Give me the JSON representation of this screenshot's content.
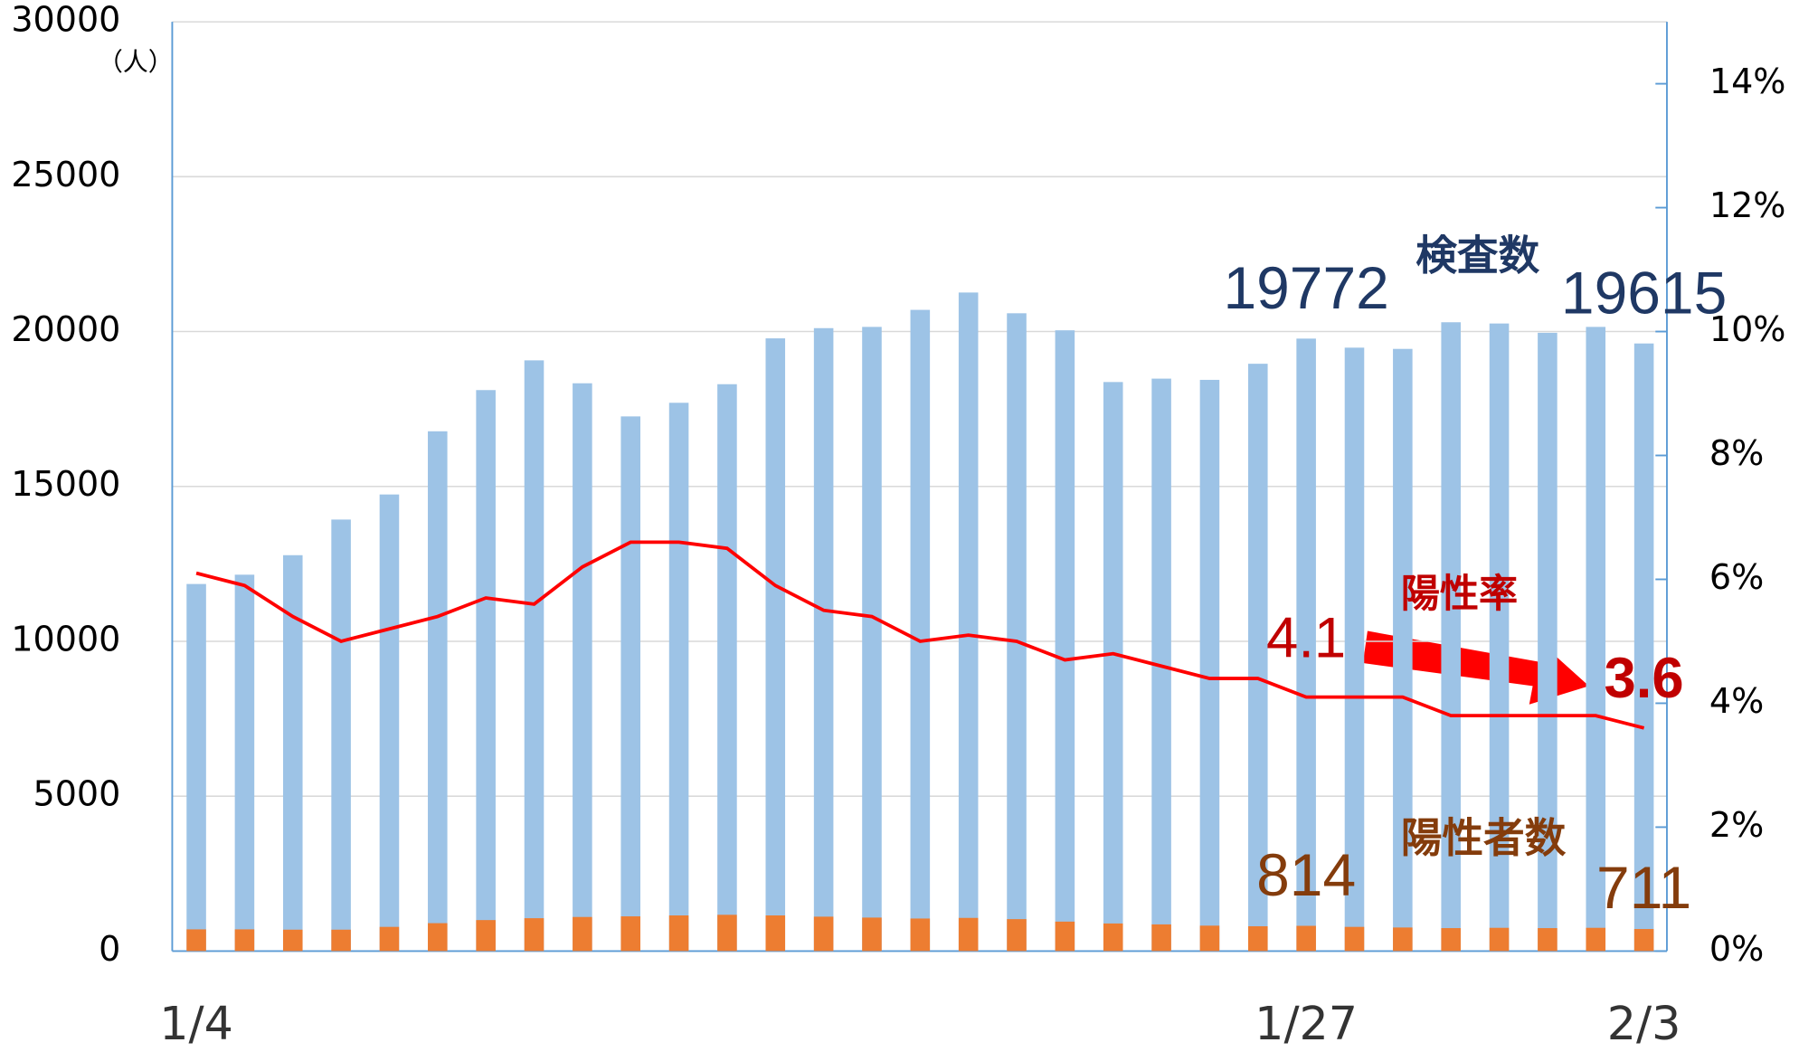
{
  "chart_data": {
    "type": "bar",
    "unit_label": "（人）",
    "categories": [
      "1/4",
      null,
      null,
      null,
      null,
      null,
      null,
      null,
      null,
      null,
      null,
      null,
      null,
      null,
      null,
      null,
      null,
      null,
      null,
      null,
      null,
      null,
      null,
      "1/27",
      null,
      null,
      null,
      null,
      null,
      null,
      "2/3"
    ],
    "series": [
      {
        "name": "検査数",
        "color": "#9dc3e6",
        "type": "bar",
        "values": [
          11850,
          12150,
          12780,
          13930,
          14740,
          16780,
          18110,
          19070,
          18330,
          17260,
          17700,
          18300,
          19780,
          20110,
          20150,
          20700,
          21260,
          20590,
          20040,
          18370,
          18480,
          18440,
          18960,
          19772,
          19480,
          19440,
          20300,
          20260,
          19960,
          20150,
          19615
        ],
        "value_labels": [
          null,
          null,
          null,
          null,
          null,
          null,
          null,
          null,
          null,
          null,
          null,
          null,
          null,
          null,
          null,
          null,
          null,
          null,
          null,
          null,
          null,
          null,
          null,
          "19772",
          null,
          null,
          null,
          null,
          null,
          null,
          "19615"
        ]
      },
      {
        "name": "陽性者数",
        "color": "#ed7d31",
        "type": "bar",
        "values": [
          700,
          700,
          690,
          690,
          780,
          900,
          1000,
          1060,
          1100,
          1120,
          1150,
          1170,
          1150,
          1110,
          1080,
          1050,
          1070,
          1030,
          950,
          890,
          860,
          820,
          800,
          814,
          780,
          760,
          740,
          750,
          740,
          750,
          711
        ],
        "value_labels": [
          null,
          null,
          null,
          null,
          null,
          null,
          null,
          null,
          null,
          null,
          null,
          null,
          null,
          null,
          null,
          null,
          null,
          null,
          null,
          null,
          null,
          null,
          null,
          "814",
          null,
          null,
          null,
          null,
          null,
          null,
          "711"
        ]
      },
      {
        "name": "陽性率",
        "color": "#ff0000",
        "type": "line",
        "axis": "y2",
        "values": [
          6.1,
          5.9,
          5.4,
          5.0,
          5.2,
          5.4,
          5.7,
          5.6,
          6.2,
          6.6,
          6.6,
          6.5,
          5.9,
          5.5,
          5.4,
          5.0,
          5.1,
          5.0,
          4.7,
          4.8,
          4.6,
          4.4,
          4.4,
          4.1,
          4.1,
          4.1,
          3.8,
          3.8,
          3.8,
          3.8,
          3.6
        ],
        "value_labels": [
          null,
          null,
          null,
          null,
          null,
          null,
          null,
          null,
          null,
          null,
          null,
          null,
          null,
          null,
          null,
          null,
          null,
          null,
          null,
          null,
          null,
          null,
          null,
          "4.1",
          null,
          null,
          null,
          null,
          null,
          null,
          "3.6"
        ]
      }
    ],
    "ylim": [
      0,
      30000
    ],
    "yticks": [
      0,
      5000,
      10000,
      15000,
      20000,
      25000,
      30000
    ],
    "y2lim": [
      0,
      15
    ],
    "y2ticks": [
      {
        "value": 0,
        "label": "0%"
      },
      {
        "value": 2,
        "label": "2%"
      },
      {
        "value": 4,
        "label": "4%"
      },
      {
        "value": 6,
        "label": "6%"
      },
      {
        "value": 8,
        "label": "8%"
      },
      {
        "value": 10,
        "label": "10%"
      },
      {
        "value": 12,
        "label": "12%"
      },
      {
        "value": 14,
        "label": "14%"
      }
    ],
    "grid": true
  }
}
